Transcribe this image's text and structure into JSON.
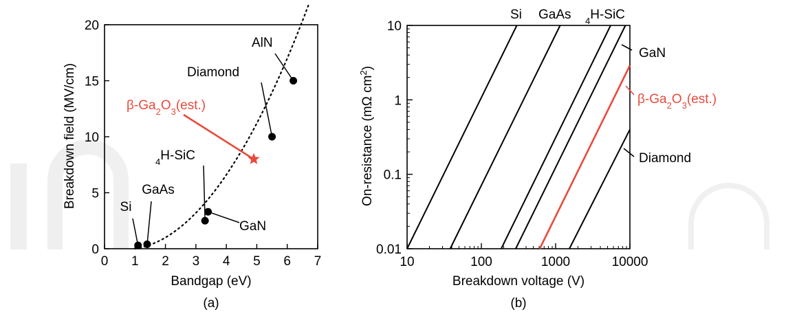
{
  "watermark": "In",
  "chart_data": [
    {
      "panel_label": "(a)",
      "type": "scatter",
      "xlabel": "Bandgap (eV)",
      "ylabel": "Breakdown field (MV/cm)",
      "xlim": [
        0,
        7
      ],
      "ylim": [
        0,
        20
      ],
      "xticks": [
        0,
        1,
        2,
        3,
        4,
        5,
        6,
        7
      ],
      "yticks": [
        0,
        5,
        10,
        15,
        20
      ],
      "points": [
        {
          "label": "Si",
          "x": 1.1,
          "y": 0.3,
          "marker": "circle"
        },
        {
          "label": "GaAs",
          "x": 1.4,
          "y": 0.4,
          "marker": "circle"
        },
        {
          "label": "4H-SiC",
          "x": 3.3,
          "y": 2.5,
          "marker": "circle"
        },
        {
          "label": "GaN",
          "x": 3.4,
          "y": 3.3,
          "marker": "circle"
        },
        {
          "label": "Diamond",
          "x": 5.5,
          "y": 10,
          "marker": "circle"
        },
        {
          "label": "AlN",
          "x": 6.2,
          "y": 15,
          "marker": "circle"
        },
        {
          "label": "β-Ga2O3(est.)",
          "x": 4.9,
          "y": 8,
          "marker": "star",
          "color": "#e84a3c"
        }
      ],
      "trend_curve": {
        "style": "dotted",
        "x_range": [
          1.0,
          6.7
        ]
      }
    },
    {
      "panel_label": "(b)",
      "type": "line",
      "xlabel": "Breakdown voltage (V)",
      "ylabel": "On-resistance (mΩ cm²)",
      "xscale": "log",
      "yscale": "log",
      "xlim": [
        10,
        10000
      ],
      "ylim": [
        0.01,
        10
      ],
      "xticks": [
        10,
        100,
        1000,
        10000
      ],
      "xtick_labels": [
        "10",
        "100",
        "1000",
        "10000"
      ],
      "yticks": [
        0.01,
        0.1,
        1,
        10
      ],
      "ytick_labels": [
        "0.01",
        "0.1",
        "1",
        "10"
      ],
      "series": [
        {
          "name": "Si",
          "x": [
            10,
            300
          ],
          "y": [
            0.01,
            10
          ],
          "color": "#000000"
        },
        {
          "name": "GaAs",
          "x": [
            38,
            1150
          ],
          "y": [
            0.01,
            10
          ],
          "color": "#000000"
        },
        {
          "name": "4H-SiC",
          "x": [
            185,
            5500
          ],
          "y": [
            0.01,
            10
          ],
          "color": "#000000"
        },
        {
          "name": "GaN",
          "x": [
            290,
            8700
          ],
          "y": [
            0.01,
            10
          ],
          "color": "#000000"
        },
        {
          "name": "β-Ga2O3(est.)",
          "x": [
            610,
            10000
          ],
          "y": [
            0.01,
            2.9
          ],
          "color": "#e84a3c"
        },
        {
          "name": "Diamond",
          "x": [
            1530,
            10000
          ],
          "y": [
            0.01,
            0.4
          ],
          "color": "#000000"
        }
      ]
    }
  ]
}
